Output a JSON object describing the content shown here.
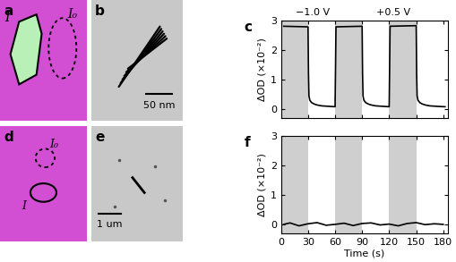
{
  "chart_data": [
    {
      "type": "image",
      "title": "a",
      "annotations": [
        "I",
        "I₀"
      ]
    },
    {
      "type": "image",
      "title": "b",
      "annotations": [
        "50 nm"
      ]
    },
    {
      "type": "line",
      "title": "c",
      "y_label": "ΔOD (×10⁻²)",
      "annotations": [
        {
          "text": "−1.0 V",
          "x": 35
        },
        {
          "text": "+0.5 V",
          "x": 125
        }
      ],
      "shaded": [
        [
          0,
          30
        ],
        [
          60,
          90
        ],
        [
          120,
          150
        ]
      ],
      "xlim": [
        0,
        185
      ],
      "xticks": [
        0,
        30,
        60,
        90,
        120,
        150,
        180
      ],
      "ylim": [
        -0.3,
        3
      ],
      "yticks": [
        0,
        1,
        2,
        3
      ],
      "tick_labels": "y",
      "series": [
        {
          "color": "#000000",
          "x": [
            3,
            30,
            30.5,
            31,
            32,
            34,
            37,
            40,
            45,
            50,
            55,
            60,
            60.5,
            61,
            90,
            90.5,
            91,
            92,
            94,
            97,
            100,
            105,
            110,
            115,
            120,
            120.5,
            121,
            150,
            150.5,
            151,
            152,
            154,
            157,
            160,
            165,
            170,
            175,
            182
          ],
          "values": [
            2.82,
            2.8,
            1.2,
            0.45,
            0.3,
            0.22,
            0.17,
            0.14,
            0.11,
            0.1,
            0.09,
            0.08,
            1.4,
            2.8,
            2.82,
            1.2,
            0.45,
            0.3,
            0.22,
            0.17,
            0.14,
            0.11,
            0.1,
            0.09,
            0.08,
            1.4,
            2.82,
            2.84,
            1.2,
            0.45,
            0.3,
            0.22,
            0.17,
            0.14,
            0.11,
            0.1,
            0.09,
            0.08
          ]
        }
      ]
    },
    {
      "type": "image",
      "title": "d",
      "annotations": [
        "I₀",
        "I"
      ]
    },
    {
      "type": "image",
      "title": "e",
      "annotations": [
        "1 um"
      ]
    },
    {
      "type": "line",
      "title": "f",
      "x_label": "Time (s)",
      "y_label": "ΔOD (×10⁻²)",
      "shaded": [
        [
          0,
          30
        ],
        [
          60,
          90
        ],
        [
          120,
          150
        ]
      ],
      "xlim": [
        0,
        185
      ],
      "xticks": [
        0,
        30,
        60,
        90,
        120,
        150,
        180
      ],
      "ylim": [
        -0.3,
        3
      ],
      "yticks": [
        0,
        1,
        2,
        3
      ],
      "series": [
        {
          "color": "#000000",
          "x": [
            3,
            10,
            20,
            30,
            40,
            50,
            60,
            70,
            80,
            90,
            100,
            110,
            120,
            130,
            140,
            150,
            160,
            170,
            180
          ],
          "values": [
            0.0,
            0.05,
            -0.05,
            0.02,
            0.06,
            -0.03,
            0.0,
            0.04,
            -0.04,
            0.03,
            0.05,
            -0.02,
            0.01,
            -0.05,
            0.03,
            0.06,
            -0.01,
            0.02,
            0.0
          ]
        }
      ]
    }
  ]
}
